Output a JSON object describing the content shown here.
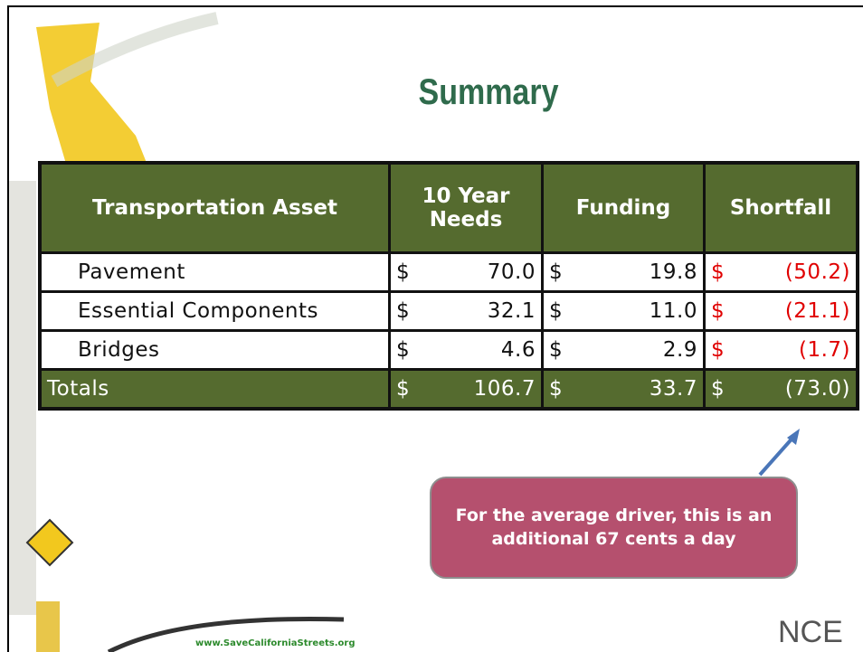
{
  "title": "Summary",
  "table": {
    "header": [
      "Transportation Asset",
      "10 Year Needs",
      "Funding",
      "Shortfall"
    ],
    "rows": [
      {
        "label": "Pavement",
        "cells": [
          {
            "currency": "$",
            "amount": "70.0"
          },
          {
            "currency": "$",
            "amount": "19.8"
          },
          {
            "currency": "$",
            "amount": "(50.2)"
          }
        ]
      },
      {
        "label": "Essential Components",
        "cells": [
          {
            "currency": "$",
            "amount": "32.1"
          },
          {
            "currency": "$",
            "amount": "11.0"
          },
          {
            "currency": "$",
            "amount": "(21.1)"
          }
        ]
      },
      {
        "label": "Bridges",
        "cells": [
          {
            "currency": "$",
            "amount": "4.6"
          },
          {
            "currency": "$",
            "amount": "2.9"
          },
          {
            "currency": "$",
            "amount": "(1.7)"
          }
        ]
      }
    ],
    "totals": {
      "label": "Totals",
      "cells": [
        {
          "currency": "$",
          "amount": "106.7"
        },
        {
          "currency": "$",
          "amount": "33.7"
        },
        {
          "currency": "$",
          "amount": "(73.0)"
        }
      ]
    }
  },
  "callout": "For the average driver, this is an additional 67 cents a day",
  "footer": {
    "url": "www.SaveCaliforniaStreets.org",
    "logo": "NCE"
  }
}
